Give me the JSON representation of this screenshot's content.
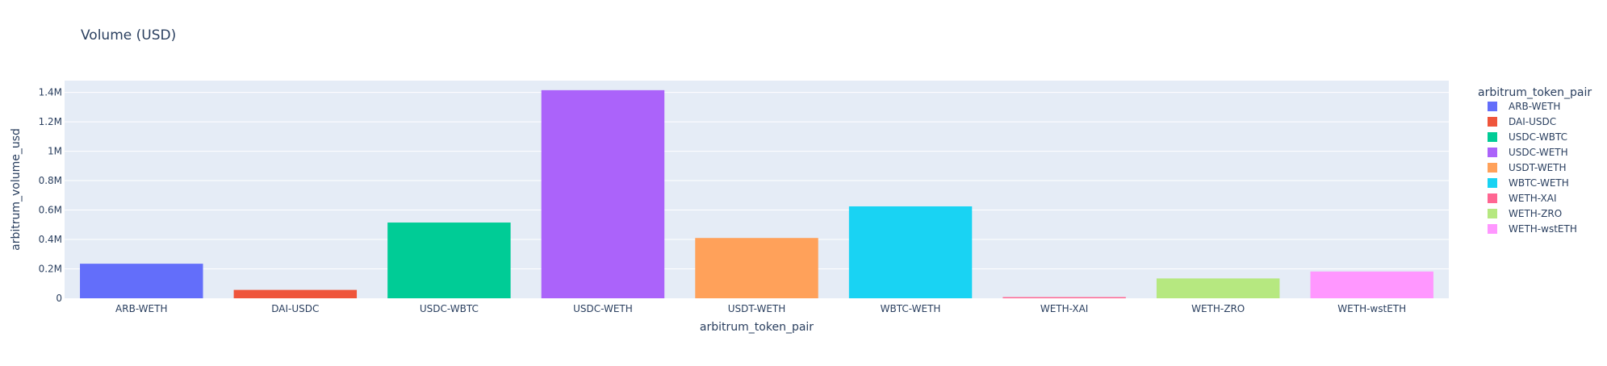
{
  "chart_data": {
    "type": "bar",
    "title": "Volume (USD)",
    "xlabel": "arbitrum_token_pair",
    "ylabel": "arbitrum_volume_usd",
    "legend_title": "arbitrum_token_pair",
    "legend_position": "right",
    "grid": true,
    "ylim": [
      0,
      1480000
    ],
    "yticks": [
      0,
      200000,
      400000,
      600000,
      800000,
      1000000,
      1200000,
      1400000
    ],
    "ytick_labels": [
      "0",
      "0.2M",
      "0.4M",
      "0.6M",
      "0.8M",
      "1M",
      "1.2M",
      "1.4M"
    ],
    "categories": [
      "ARB-WETH",
      "DAI-USDC",
      "USDC-WBTC",
      "USDC-WETH",
      "USDT-WETH",
      "WBTC-WETH",
      "WETH-XAI",
      "WETH-ZRO",
      "WETH-wstETH"
    ],
    "values": [
      235000,
      57000,
      515000,
      1415000,
      410000,
      625000,
      8000,
      135000,
      182000
    ],
    "colors": [
      "#636efa",
      "#EF553B",
      "#00cc96",
      "#ab63fa",
      "#FFA15A",
      "#19d3f3",
      "#FF6692",
      "#B6E880",
      "#FF97FF"
    ],
    "plot_bg": "#e5ecf6",
    "grid_color": "#ffffff",
    "text_color": "#2a3f5f"
  }
}
